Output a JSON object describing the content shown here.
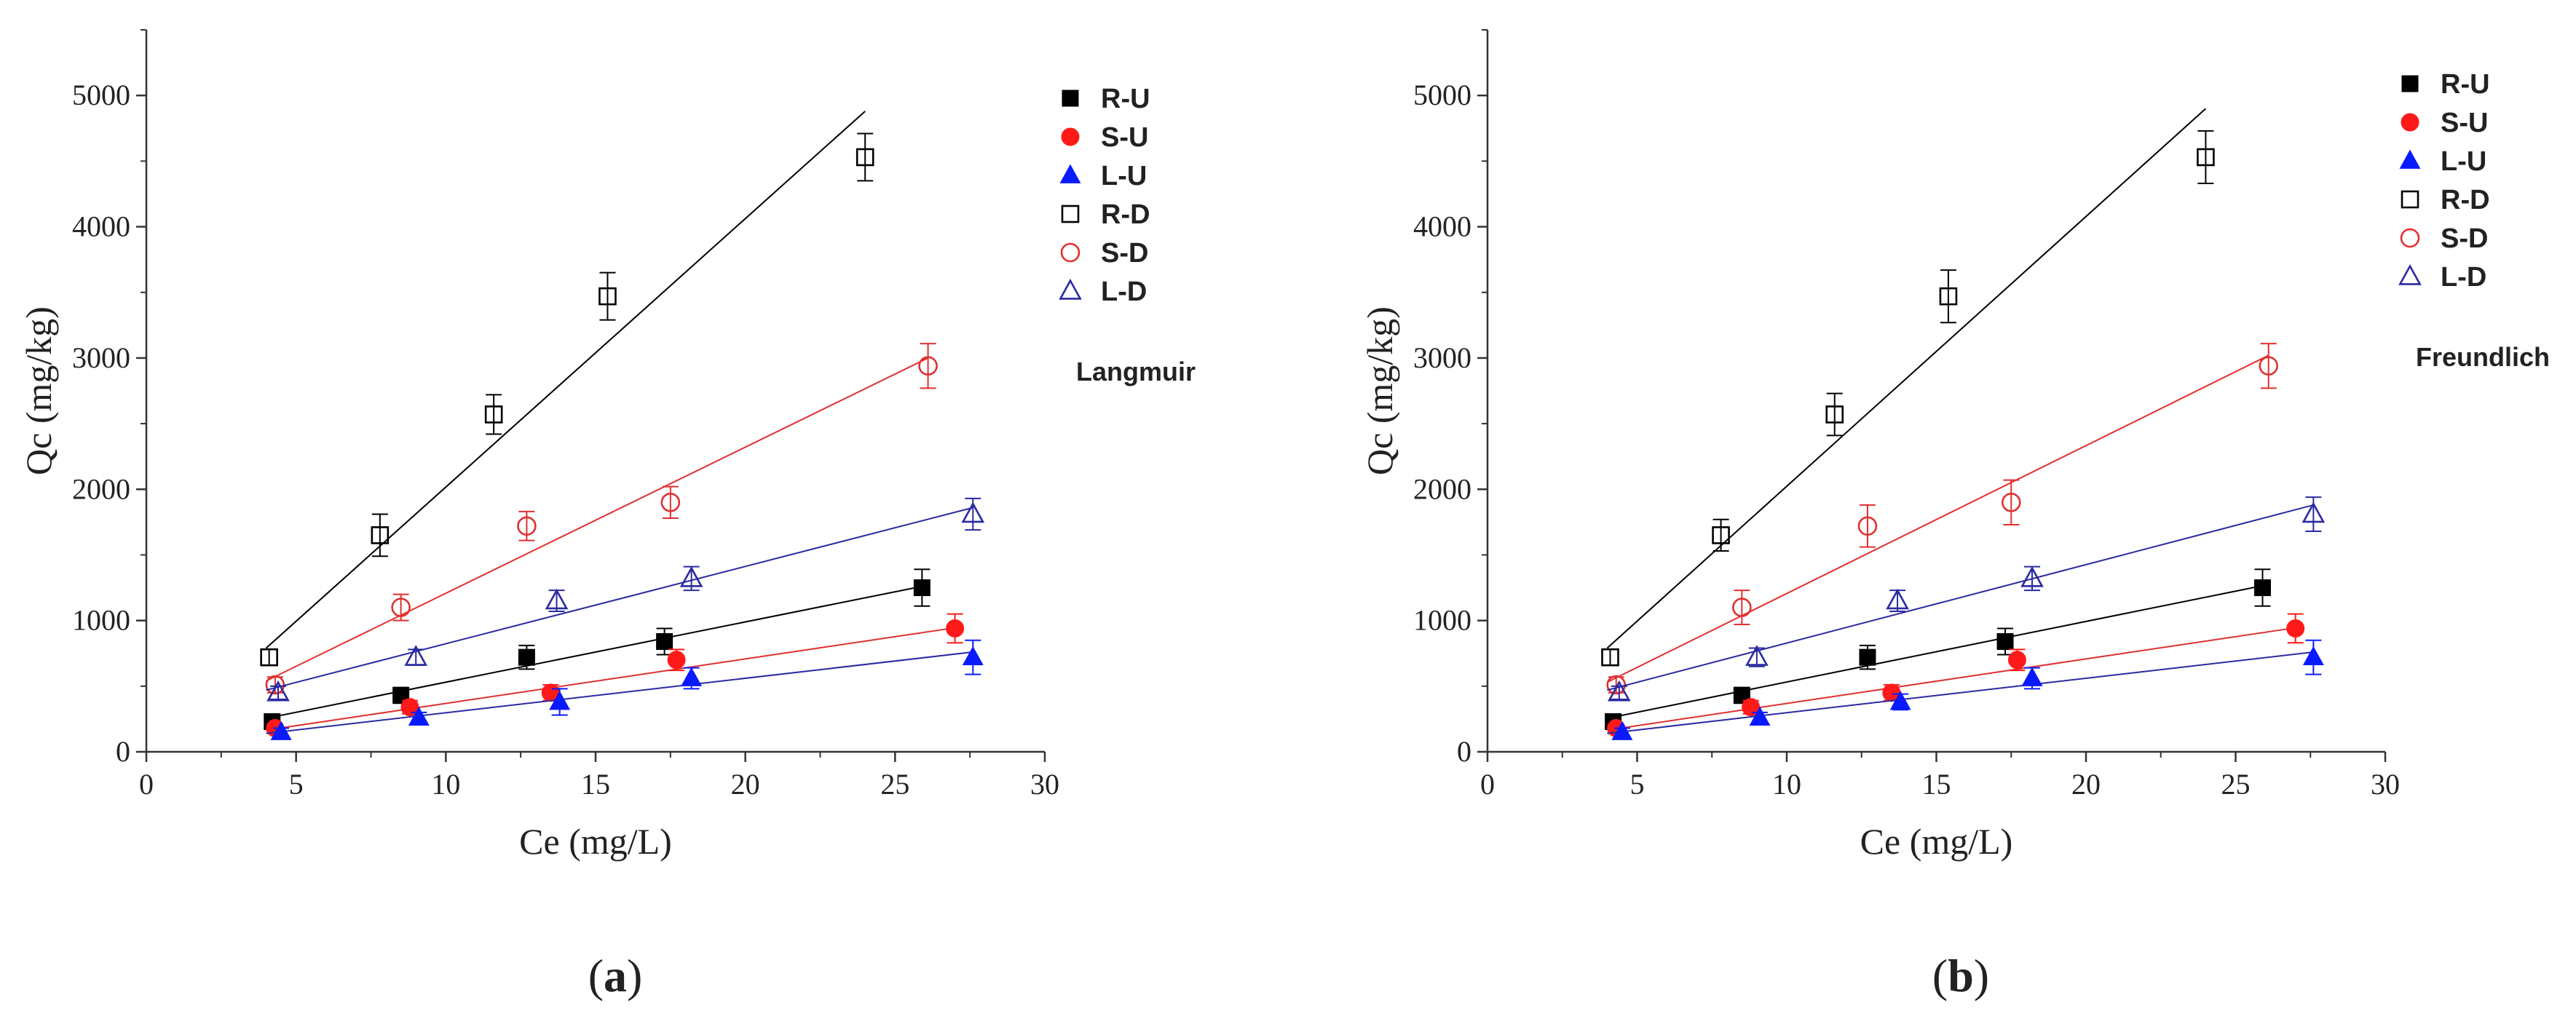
{
  "panels": [
    {
      "caption": "(a)",
      "caption_letter": "a",
      "model_label": "Langmuir"
    },
    {
      "caption": "(b)",
      "caption_letter": "b",
      "model_label": "Freundlich"
    }
  ],
  "chart_data": [
    {
      "type": "scatter",
      "title": "",
      "model": "Langmuir",
      "xlabel": "Ce (mg/L)",
      "ylabel": "Qc (mg/kg)",
      "xlim": [
        0,
        30
      ],
      "ylim": [
        0,
        5500
      ],
      "xticks": [
        0,
        5,
        10,
        15,
        20,
        25,
        30
      ],
      "yticks": [
        0,
        1000,
        2000,
        3000,
        4000,
        5000
      ],
      "legend_position": "right, outside plot",
      "series": [
        {
          "name": "R-U",
          "marker": "square",
          "filled": true,
          "color": "#000000",
          "line_color": "#000000",
          "x": [
            4.2,
            8.5,
            12.7,
            17.3,
            25.9
          ],
          "y": [
            230,
            430,
            720,
            840,
            1250
          ],
          "err": [
            40,
            60,
            90,
            100,
            140
          ],
          "fit": [
            [
              4.0,
              255
            ],
            [
              26.0,
              1265
            ]
          ]
        },
        {
          "name": "S-U",
          "marker": "circle",
          "filled": true,
          "color": "#ff1a1a",
          "line_color": "#e03030",
          "x": [
            4.3,
            8.8,
            13.5,
            17.7,
            27.0
          ],
          "y": [
            180,
            340,
            450,
            700,
            940
          ],
          "err": [
            30,
            50,
            60,
            80,
            110
          ],
          "fit": [
            [
              4.0,
              165
            ],
            [
              27.0,
              945
            ]
          ]
        },
        {
          "name": "L-U",
          "marker": "triangle",
          "filled": true,
          "color": "#0a1aff",
          "line_color": "#2a2aa0",
          "x": [
            4.5,
            9.1,
            13.8,
            18.2,
            27.6
          ],
          "y": [
            150,
            260,
            380,
            560,
            720
          ],
          "err": [
            30,
            40,
            100,
            80,
            130
          ],
          "fit": [
            [
              4.0,
              140
            ],
            [
              27.6,
              760
            ]
          ]
        },
        {
          "name": "R-D",
          "marker": "square",
          "filled": false,
          "color": "#000000",
          "line_color": "#000000",
          "x": [
            4.1,
            7.8,
            11.6,
            15.4,
            24.0
          ],
          "y": [
            720,
            1650,
            2570,
            3470,
            4530
          ],
          "err": [
            60,
            160,
            150,
            180,
            180
          ],
          "fit": [
            [
              4.0,
              790
            ],
            [
              24.0,
              4880
            ]
          ]
        },
        {
          "name": "S-D",
          "marker": "circle",
          "filled": false,
          "color": "#e03030",
          "line_color": "#e03030",
          "x": [
            4.3,
            8.5,
            12.7,
            17.5,
            26.1
          ],
          "y": [
            510,
            1100,
            1720,
            1900,
            2940
          ],
          "err": [
            60,
            100,
            110,
            120,
            170
          ],
          "fit": [
            [
              4.0,
              540
            ],
            [
              26.1,
              3000
            ]
          ]
        },
        {
          "name": "L-D",
          "marker": "triangle",
          "filled": false,
          "color": "#2a2aa0",
          "line_color": "#2a2aa0",
          "x": [
            4.4,
            9.0,
            13.7,
            18.2,
            27.6
          ],
          "y": [
            450,
            720,
            1150,
            1320,
            1810
          ],
          "err": [
            50,
            60,
            80,
            90,
            120
          ],
          "fit": [
            [
              4.0,
              470
            ],
            [
              27.6,
              1860
            ]
          ]
        }
      ]
    },
    {
      "type": "scatter",
      "title": "",
      "model": "Freundlich",
      "xlabel": "Ce (mg/L)",
      "ylabel": "Qc (mg/kg)",
      "xlim": [
        0,
        30
      ],
      "ylim": [
        0,
        5500
      ],
      "xticks": [
        0,
        5,
        10,
        15,
        20,
        25,
        30
      ],
      "yticks": [
        0,
        1000,
        2000,
        3000,
        4000,
        5000
      ],
      "legend_position": "right, outside plot",
      "series": [
        {
          "name": "R-U",
          "marker": "square",
          "filled": true,
          "color": "#000000",
          "line_color": "#000000",
          "x": [
            4.2,
            8.5,
            12.7,
            17.3,
            25.9
          ],
          "y": [
            230,
            430,
            720,
            840,
            1250
          ],
          "err": [
            40,
            60,
            90,
            100,
            140
          ],
          "fit": [
            [
              4.0,
              255
            ],
            [
              26.0,
              1270
            ]
          ]
        },
        {
          "name": "S-U",
          "marker": "circle",
          "filled": true,
          "color": "#ff1a1a",
          "line_color": "#e03030",
          "x": [
            4.3,
            8.8,
            13.5,
            17.7,
            27.0
          ],
          "y": [
            180,
            340,
            450,
            700,
            940
          ],
          "err": [
            30,
            50,
            60,
            80,
            110
          ],
          "fit": [
            [
              4.0,
              165
            ],
            [
              27.0,
              945
            ]
          ]
        },
        {
          "name": "L-U",
          "marker": "triangle",
          "filled": true,
          "color": "#0a1aff",
          "line_color": "#2a2aa0",
          "x": [
            4.5,
            9.1,
            13.8,
            18.2,
            27.6
          ],
          "y": [
            150,
            260,
            380,
            560,
            720
          ],
          "err": [
            30,
            40,
            60,
            80,
            130
          ],
          "fit": [
            [
              4.0,
              140
            ],
            [
              27.6,
              760
            ]
          ]
        },
        {
          "name": "R-D",
          "marker": "square",
          "filled": false,
          "color": "#000000",
          "line_color": "#000000",
          "x": [
            4.1,
            7.8,
            11.6,
            15.4,
            24.0
          ],
          "y": [
            720,
            1650,
            2570,
            3470,
            4530
          ],
          "err": [
            60,
            120,
            160,
            200,
            200
          ],
          "fit": [
            [
              4.0,
              790
            ],
            [
              24.0,
              4900
            ]
          ]
        },
        {
          "name": "S-D",
          "marker": "circle",
          "filled": false,
          "color": "#e03030",
          "line_color": "#e03030",
          "x": [
            4.3,
            8.5,
            12.7,
            17.5,
            26.1
          ],
          "y": [
            510,
            1100,
            1720,
            1900,
            2940
          ],
          "err": [
            60,
            130,
            160,
            170,
            170
          ],
          "fit": [
            [
              4.0,
              530
            ],
            [
              26.1,
              3020
            ]
          ]
        },
        {
          "name": "L-D",
          "marker": "triangle",
          "filled": false,
          "color": "#2a2aa0",
          "line_color": "#2a2aa0",
          "x": [
            4.4,
            9.0,
            13.7,
            18.2,
            27.6
          ],
          "y": [
            450,
            720,
            1150,
            1320,
            1810
          ],
          "err": [
            50,
            70,
            80,
            90,
            130
          ],
          "fit": [
            [
              4.0,
              470
            ],
            [
              27.6,
              1880
            ]
          ]
        }
      ]
    }
  ]
}
